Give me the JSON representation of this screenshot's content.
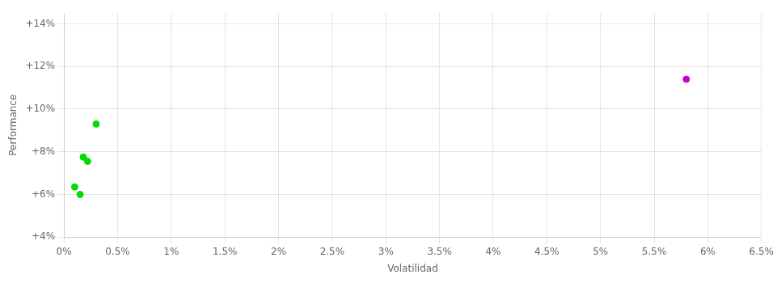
{
  "chart_data": {
    "type": "scatter",
    "xlabel": "Volatilidad",
    "ylabel": "Performance",
    "xlim": [
      0.0,
      0.065
    ],
    "ylim": [
      0.04,
      0.145
    ],
    "xticks": [
      {
        "value": 0.0,
        "label": "0%"
      },
      {
        "value": 0.005,
        "label": "0.5%"
      },
      {
        "value": 0.01,
        "label": "1%"
      },
      {
        "value": 0.015,
        "label": "1.5%"
      },
      {
        "value": 0.02,
        "label": "2%"
      },
      {
        "value": 0.025,
        "label": "2.5%"
      },
      {
        "value": 0.03,
        "label": "3%"
      },
      {
        "value": 0.035,
        "label": "3.5%"
      },
      {
        "value": 0.04,
        "label": "4%"
      },
      {
        "value": 0.045,
        "label": "4.5%"
      },
      {
        "value": 0.05,
        "label": "5%"
      },
      {
        "value": 0.055,
        "label": "5.5%"
      },
      {
        "value": 0.06,
        "label": "6%"
      },
      {
        "value": 0.065,
        "label": "6.5%"
      }
    ],
    "yticks": [
      {
        "value": 0.04,
        "label": "+4%"
      },
      {
        "value": 0.06,
        "label": "+6%"
      },
      {
        "value": 0.08,
        "label": "+8%"
      },
      {
        "value": 0.1,
        "label": "+10%"
      },
      {
        "value": 0.12,
        "label": "+12%"
      },
      {
        "value": 0.14,
        "label": "+14%"
      }
    ],
    "grid": true,
    "series": [
      {
        "color": "#00dd00",
        "x": [
          0.003,
          0.0018,
          0.0022,
          0.001,
          0.0015
        ],
        "values": [
          0.093,
          0.0775,
          0.0755,
          0.0635,
          0.06
        ]
      },
      {
        "color": "#cc00cc",
        "x": [
          0.058
        ],
        "values": [
          0.114
        ]
      }
    ]
  }
}
